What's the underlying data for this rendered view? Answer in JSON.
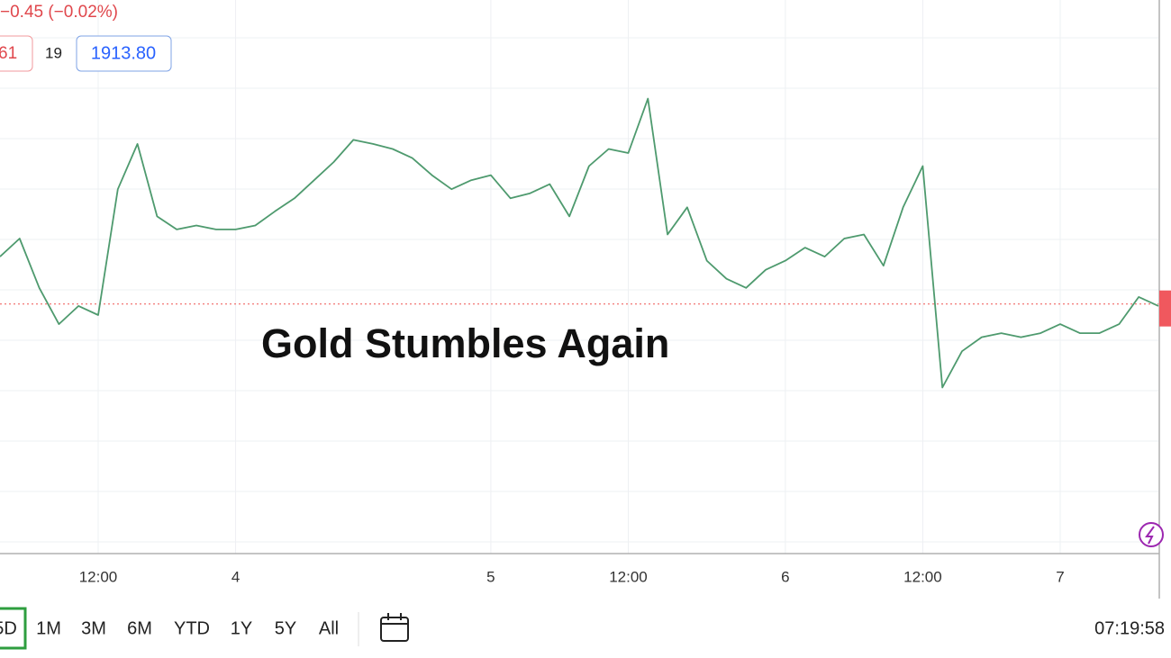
{
  "header": {
    "change": "−0.45 (−0.02%)",
    "badges": [
      "61",
      "19"
    ],
    "last_price": {
      "value": 1913.8,
      "label": "1913.80"
    }
  },
  "chart_data": {
    "type": "line",
    "title": "Gold Stumbles Again",
    "color": "#4e9a6e",
    "x": [
      0,
      1,
      2,
      3,
      4,
      5,
      6,
      7,
      8,
      9,
      10,
      11,
      12,
      13,
      14,
      15,
      16,
      17,
      18,
      19,
      20,
      21,
      22,
      23,
      24,
      25,
      26,
      27,
      28,
      29,
      30,
      31,
      32,
      33,
      34,
      35,
      36,
      37,
      38,
      39,
      40,
      41,
      42,
      43,
      44,
      45,
      46,
      47,
      48,
      49,
      50,
      51,
      52,
      53,
      54,
      55,
      56,
      57,
      58,
      59
    ],
    "values": [
      1918.5,
      1920.3,
      1915.4,
      1911.8,
      1913.6,
      1912.7,
      1925.2,
      1929.7,
      1922.5,
      1921.2,
      1921.6,
      1921.2,
      1921.2,
      1921.6,
      1923.0,
      1924.3,
      1926.1,
      1927.9,
      1930.1,
      1929.7,
      1929.2,
      1928.3,
      1926.6,
      1925.2,
      1926.1,
      1926.6,
      1924.3,
      1924.8,
      1925.7,
      1922.5,
      1927.5,
      1929.2,
      1928.8,
      1934.2,
      1920.7,
      1923.4,
      1918.1,
      1916.3,
      1915.4,
      1917.2,
      1918.1,
      1919.4,
      1918.5,
      1920.3,
      1920.7,
      1917.6,
      1923.4,
      1927.5,
      1905.5,
      1909.1,
      1910.5,
      1910.9,
      1910.5,
      1910.9,
      1911.8,
      1910.9,
      1910.9,
      1911.8,
      1914.5,
      1913.6
    ],
    "xlim": [
      0,
      59
    ],
    "ylim": [
      1889,
      1944
    ],
    "xticks": [
      {
        "value": 5,
        "label": "12:00"
      },
      {
        "value": 12,
        "label": "4"
      },
      {
        "value": 25,
        "label": "5"
      },
      {
        "value": 32,
        "label": "12:00"
      },
      {
        "value": 40,
        "label": "6"
      },
      {
        "value": 47,
        "label": "12:00"
      },
      {
        "value": 54,
        "label": "7"
      }
    ],
    "grid": true
  },
  "toolbar": {
    "ranges": [
      "5D",
      "1M",
      "3M",
      "6M",
      "YTD",
      "1Y",
      "5Y",
      "All"
    ],
    "clock": "07:19:58"
  }
}
